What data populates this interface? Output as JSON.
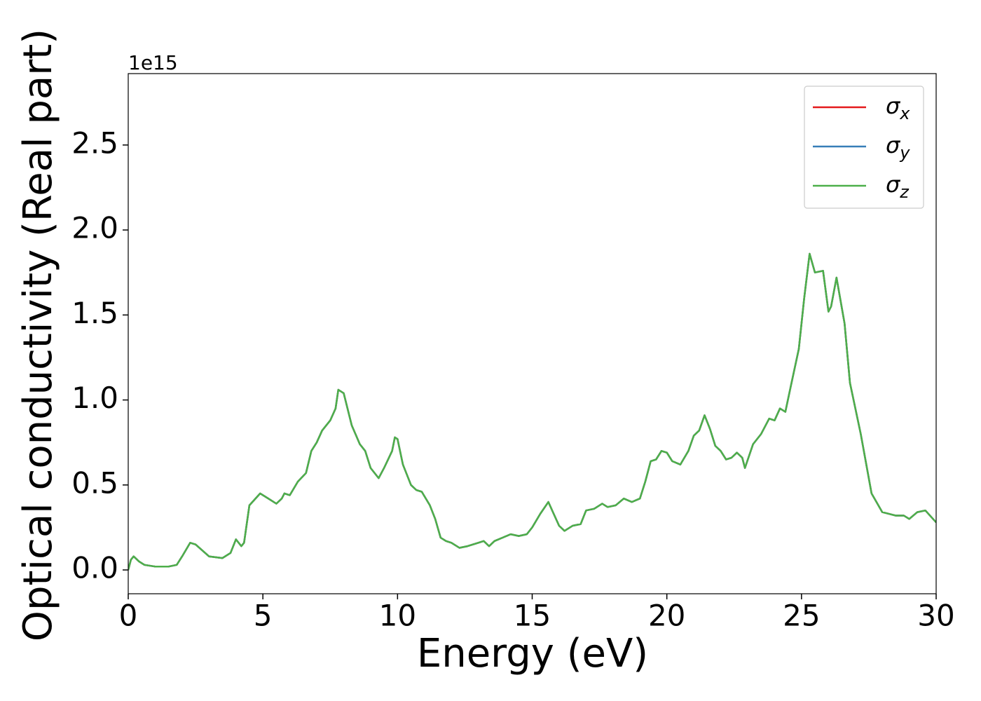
{
  "chart_data": {
    "type": "line",
    "xlabel": "Energy (eV)",
    "ylabel": "Optical conductivity (Real part)",
    "y_offset_text": "1e15",
    "x": [
      0,
      0.1,
      0.2,
      0.4,
      0.6,
      1.0,
      1.5,
      1.8,
      2.0,
      2.3,
      2.5,
      3.0,
      3.5,
      3.8,
      4.0,
      4.2,
      4.3,
      4.5,
      4.9,
      5.2,
      5.5,
      5.7,
      5.8,
      6.0,
      6.3,
      6.6,
      6.8,
      7.0,
      7.2,
      7.5,
      7.7,
      7.8,
      8.0,
      8.3,
      8.6,
      8.8,
      9.0,
      9.3,
      9.5,
      9.8,
      9.9,
      10.0,
      10.2,
      10.5,
      10.7,
      10.9,
      11.2,
      11.4,
      11.6,
      11.8,
      12.0,
      12.3,
      12.6,
      12.8,
      13.0,
      13.2,
      13.4,
      13.6,
      13.9,
      14.2,
      14.5,
      14.8,
      15.0,
      15.3,
      15.6,
      15.8,
      16.0,
      16.2,
      16.5,
      16.8,
      17.0,
      17.3,
      17.6,
      17.8,
      18.1,
      18.4,
      18.7,
      19.0,
      19.2,
      19.4,
      19.6,
      19.8,
      20.0,
      20.2,
      20.5,
      20.8,
      21.0,
      21.2,
      21.4,
      21.6,
      21.8,
      22.0,
      22.2,
      22.4,
      22.6,
      22.8,
      22.9,
      23.2,
      23.5,
      23.8,
      24.0,
      24.2,
      24.4,
      24.6,
      24.9,
      25.1,
      25.3,
      25.5,
      25.8,
      26.0,
      26.1,
      26.3,
      26.6,
      26.8,
      27.2,
      27.6,
      28.0,
      28.5,
      28.8,
      29.0,
      29.3,
      29.6,
      30.0
    ],
    "series": [
      {
        "name": "σx",
        "color": "#e41a1c",
        "values": [
          0,
          0.06,
          0.08,
          0.05,
          0.03,
          0.02,
          0.02,
          0.03,
          0.08,
          0.16,
          0.15,
          0.08,
          0.07,
          0.1,
          0.18,
          0.14,
          0.16,
          0.38,
          0.45,
          0.42,
          0.39,
          0.42,
          0.45,
          0.44,
          0.52,
          0.57,
          0.7,
          0.75,
          0.82,
          0.88,
          0.95,
          1.06,
          1.04,
          0.85,
          0.74,
          0.7,
          0.6,
          0.54,
          0.6,
          0.7,
          0.78,
          0.77,
          0.62,
          0.5,
          0.47,
          0.46,
          0.38,
          0.3,
          0.19,
          0.17,
          0.16,
          0.13,
          0.14,
          0.15,
          0.16,
          0.17,
          0.14,
          0.17,
          0.19,
          0.21,
          0.2,
          0.21,
          0.25,
          0.33,
          0.4,
          0.33,
          0.26,
          0.23,
          0.26,
          0.27,
          0.35,
          0.36,
          0.39,
          0.37,
          0.38,
          0.42,
          0.4,
          0.42,
          0.52,
          0.64,
          0.65,
          0.7,
          0.69,
          0.64,
          0.62,
          0.7,
          0.79,
          0.82,
          0.91,
          0.83,
          0.73,
          0.7,
          0.65,
          0.66,
          0.69,
          0.66,
          0.6,
          0.74,
          0.8,
          0.89,
          0.88,
          0.95,
          0.93,
          1.08,
          1.3,
          1.6,
          1.86,
          1.75,
          1.76,
          1.52,
          1.55,
          1.72,
          1.45,
          1.1,
          0.8,
          0.45,
          0.34,
          0.32,
          0.32,
          0.3,
          0.34,
          0.35,
          0.28
        ]
      },
      {
        "name": "σy",
        "color": "#377eb8",
        "values": [
          0,
          0.06,
          0.08,
          0.05,
          0.03,
          0.02,
          0.02,
          0.03,
          0.08,
          0.16,
          0.15,
          0.08,
          0.07,
          0.1,
          0.18,
          0.14,
          0.16,
          0.38,
          0.45,
          0.42,
          0.39,
          0.42,
          0.45,
          0.44,
          0.52,
          0.57,
          0.7,
          0.75,
          0.82,
          0.88,
          0.95,
          1.06,
          1.04,
          0.85,
          0.74,
          0.7,
          0.6,
          0.54,
          0.6,
          0.7,
          0.78,
          0.77,
          0.62,
          0.5,
          0.47,
          0.46,
          0.38,
          0.3,
          0.19,
          0.17,
          0.16,
          0.13,
          0.14,
          0.15,
          0.16,
          0.17,
          0.14,
          0.17,
          0.19,
          0.21,
          0.2,
          0.21,
          0.25,
          0.33,
          0.4,
          0.33,
          0.26,
          0.23,
          0.26,
          0.27,
          0.35,
          0.36,
          0.39,
          0.37,
          0.38,
          0.42,
          0.4,
          0.42,
          0.52,
          0.64,
          0.65,
          0.7,
          0.69,
          0.64,
          0.62,
          0.7,
          0.79,
          0.82,
          0.91,
          0.83,
          0.73,
          0.7,
          0.65,
          0.66,
          0.69,
          0.66,
          0.6,
          0.74,
          0.8,
          0.89,
          0.88,
          0.95,
          0.93,
          1.08,
          1.3,
          1.6,
          1.86,
          1.75,
          1.76,
          1.52,
          1.55,
          1.72,
          1.45,
          1.1,
          0.8,
          0.45,
          0.34,
          0.32,
          0.32,
          0.3,
          0.34,
          0.35,
          0.28
        ]
      },
      {
        "name": "σz",
        "color": "#4daf4a",
        "values": [
          0,
          0.06,
          0.08,
          0.05,
          0.03,
          0.02,
          0.02,
          0.03,
          0.08,
          0.16,
          0.15,
          0.08,
          0.07,
          0.1,
          0.18,
          0.14,
          0.16,
          0.38,
          0.45,
          0.42,
          0.39,
          0.42,
          0.45,
          0.44,
          0.52,
          0.57,
          0.7,
          0.75,
          0.82,
          0.88,
          0.95,
          1.06,
          1.04,
          0.85,
          0.74,
          0.7,
          0.6,
          0.54,
          0.6,
          0.7,
          0.78,
          0.77,
          0.62,
          0.5,
          0.47,
          0.46,
          0.38,
          0.3,
          0.19,
          0.17,
          0.16,
          0.13,
          0.14,
          0.15,
          0.16,
          0.17,
          0.14,
          0.17,
          0.19,
          0.21,
          0.2,
          0.21,
          0.25,
          0.33,
          0.4,
          0.33,
          0.26,
          0.23,
          0.26,
          0.27,
          0.35,
          0.36,
          0.39,
          0.37,
          0.38,
          0.42,
          0.4,
          0.42,
          0.52,
          0.64,
          0.65,
          0.7,
          0.69,
          0.64,
          0.62,
          0.7,
          0.79,
          0.82,
          0.91,
          0.83,
          0.73,
          0.7,
          0.65,
          0.66,
          0.69,
          0.66,
          0.6,
          0.74,
          0.8,
          0.89,
          0.88,
          0.95,
          0.93,
          1.08,
          1.3,
          1.6,
          1.86,
          1.75,
          1.76,
          1.52,
          1.55,
          1.72,
          1.45,
          1.1,
          0.8,
          0.45,
          0.34,
          0.32,
          0.32,
          0.3,
          0.34,
          0.35,
          0.28
        ]
      }
    ],
    "xlim": [
      0,
      30
    ],
    "xticks": [
      0,
      5,
      10,
      15,
      20,
      25,
      30
    ],
    "ylim": [
      -0.14,
      2.92
    ],
    "yticks": [
      {
        "value": 0,
        "label": "0.0"
      },
      0.5,
      {
        "value": 1,
        "label": "1.0"
      },
      1.5,
      {
        "value": 2,
        "label": "2.0"
      },
      2.5
    ],
    "legend": "upper right"
  }
}
